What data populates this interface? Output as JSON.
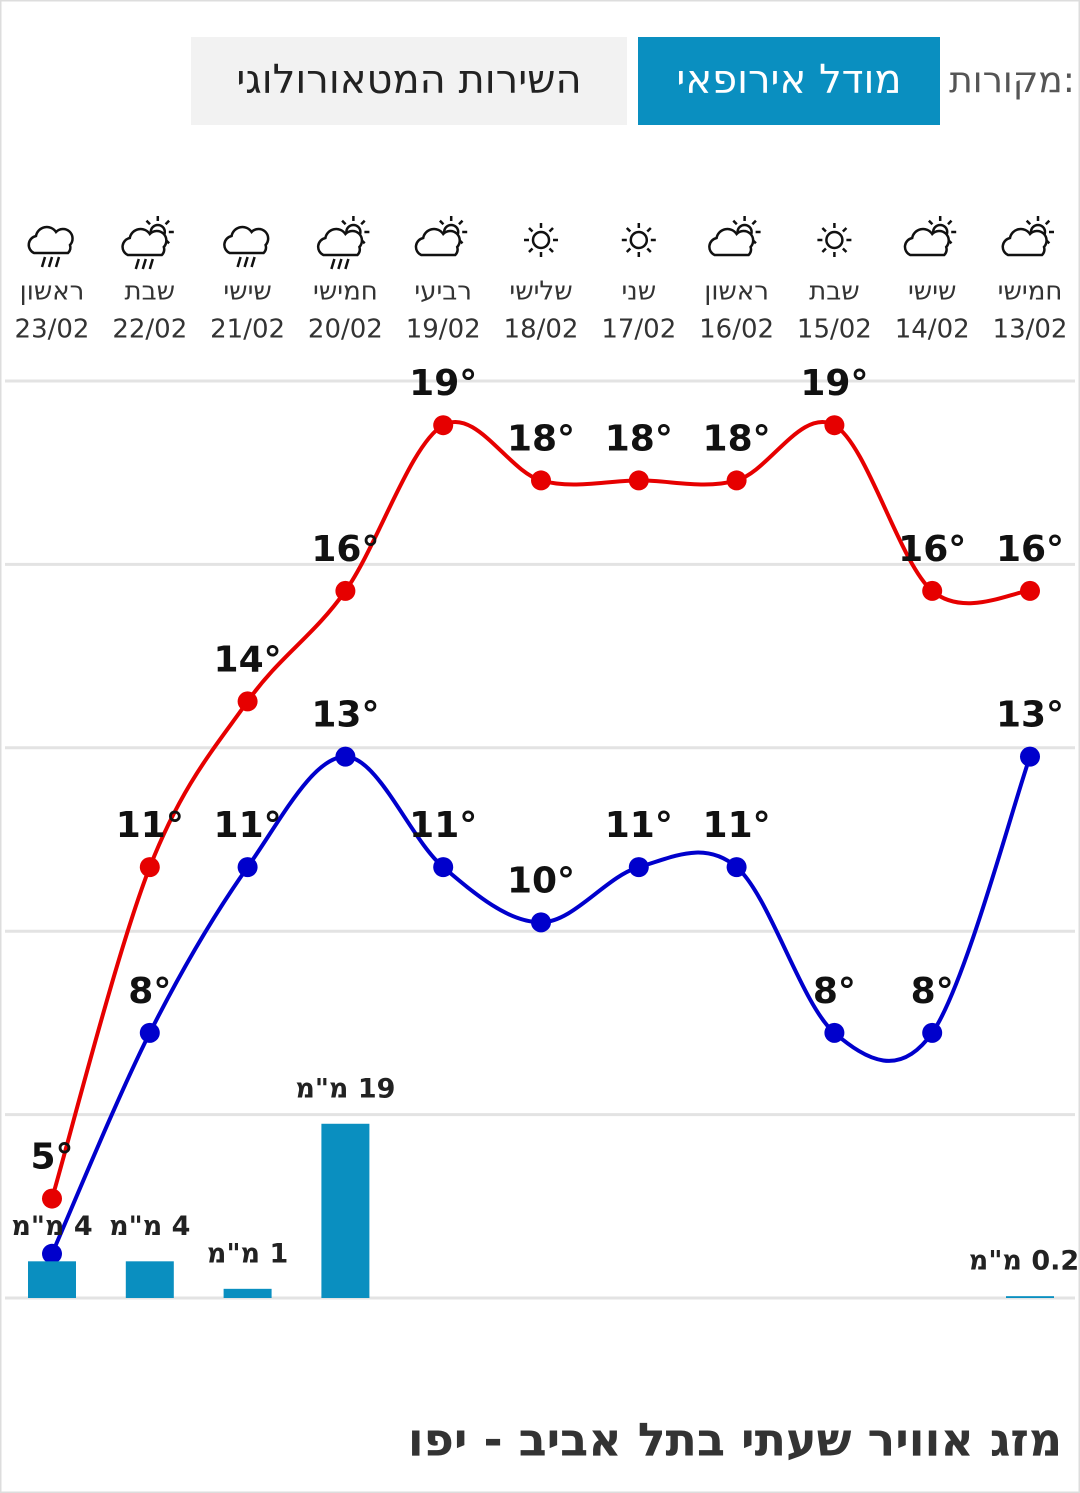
{
  "chart_data": {
    "type": "line",
    "title": "מזג אוויר שעתי בתל אביב - יפו",
    "sources_label": "מקורות:",
    "tabs": [
      "מודל אירופאי",
      "השירות המטאורולוגי"
    ],
    "categories": [
      "13/02",
      "14/02",
      "15/02",
      "16/02",
      "17/02",
      "18/02",
      "19/02",
      "20/02",
      "21/02",
      "22/02",
      "23/02"
    ],
    "days": [
      "חמישי",
      "שישי",
      "שבת",
      "ראשון",
      "שני",
      "שלישי",
      "רביעי",
      "חמישי",
      "שישי",
      "שבת",
      "ראשון"
    ],
    "ylim": [
      3.2,
      19.8
    ],
    "y2lim": [
      0,
      100
    ],
    "series": [
      {
        "color": "#e60000",
        "values": [
          16,
          16,
          19,
          18,
          18,
          18,
          19,
          16,
          14,
          11,
          5
        ],
        "value_labels": [
          "16°",
          "16°",
          "19°",
          "18°",
          "18°",
          "18°",
          "19°",
          "16°",
          "14°",
          "11°",
          "5°"
        ]
      },
      {
        "color": "#0000cc",
        "values": [
          13,
          8,
          8,
          11,
          11,
          10,
          11,
          13,
          11,
          8,
          4
        ],
        "value_labels": [
          "13°",
          "8°",
          "8°",
          "11°",
          "11°",
          "10°",
          "11°",
          "13°",
          "11°",
          "8°",
          null
        ]
      },
      {
        "type": "bar",
        "axis": "y2",
        "color": "#0a8fc0",
        "values": [
          0.2,
          null,
          null,
          null,
          null,
          null,
          null,
          19,
          1,
          4,
          4
        ],
        "value_labels": [
          "0.2 מ\"מ",
          null,
          null,
          null,
          null,
          null,
          null,
          "19 מ\"מ",
          "1 מ\"מ",
          "4 מ\"מ",
          "4 מ\"מ"
        ]
      }
    ]
  }
}
